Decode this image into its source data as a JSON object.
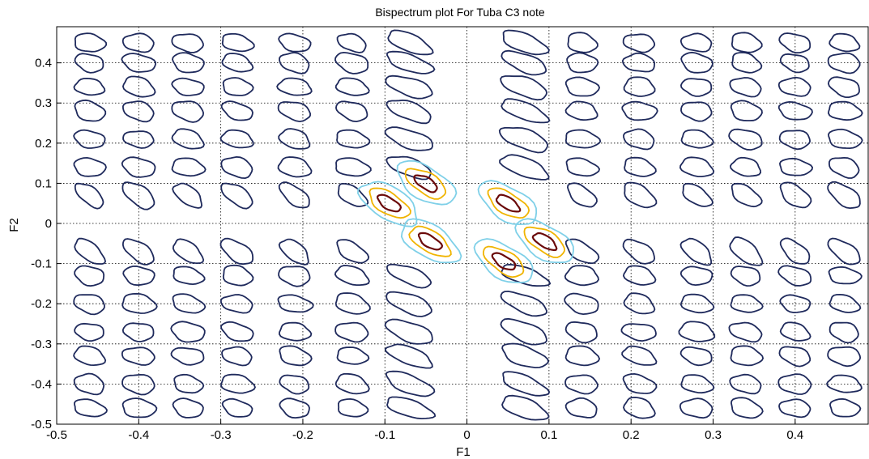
{
  "chart_data": {
    "type": "contour",
    "title": "Bispectrum plot For Tuba C3 note",
    "xlabel": "F1",
    "ylabel": "F2",
    "xlim": [
      -0.5,
      0.49
    ],
    "ylim": [
      -0.5,
      0.49
    ],
    "xticks": [
      -0.5,
      -0.4,
      -0.3,
      -0.2,
      -0.1,
      0,
      0.1,
      0.2,
      0.3,
      0.4
    ],
    "xtick_labels": [
      "-0.5",
      "-0.4",
      "-0.3",
      "-0.2",
      "-0.1",
      "0",
      "0.1",
      "0.2",
      "0.3",
      "0.4"
    ],
    "yticks": [
      -0.5,
      -0.4,
      -0.3,
      -0.2,
      -0.1,
      0,
      0.1,
      0.2,
      0.3,
      0.4
    ],
    "ytick_labels": [
      "-0.5",
      "-0.4",
      "-0.3",
      "-0.2",
      "-0.1",
      "0",
      "0.1",
      "0.2",
      "0.3",
      "0.4"
    ],
    "grid": true,
    "grid_style": "dotted",
    "colors": {
      "low_level": "#1f2a5c",
      "level_2": "#7fd0e8",
      "level_3": "#f0b400",
      "peak": "#6b0a0a"
    },
    "peaks": [
      {
        "x": -0.05,
        "y": 0.1
      },
      {
        "x": -0.095,
        "y": 0.05
      },
      {
        "x": -0.045,
        "y": -0.045
      },
      {
        "x": 0.05,
        "y": 0.05
      },
      {
        "x": 0.095,
        "y": -0.045
      },
      {
        "x": 0.045,
        "y": -0.095
      }
    ],
    "contour_rows_y": [
      0.45,
      0.4,
      0.34,
      0.28,
      0.21,
      0.14,
      0.07,
      -0.07,
      -0.13,
      -0.2,
      -0.27,
      -0.33,
      -0.4,
      -0.46
    ],
    "contour_cols_x": [
      -0.46,
      -0.4,
      -0.34,
      -0.28,
      -0.21,
      -0.14,
      -0.07,
      0.07,
      0.14,
      0.21,
      0.28,
      0.34,
      0.4,
      0.46
    ]
  }
}
